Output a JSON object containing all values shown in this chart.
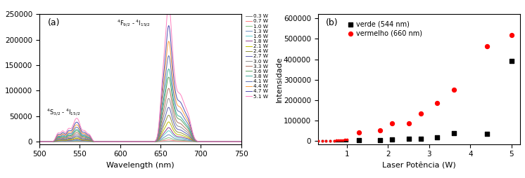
{
  "panel_a": {
    "xlabel": "Wavelength (nm)",
    "ylabel": "",
    "xlim": [
      500,
      750
    ],
    "ylim": [
      -5000,
      250000
    ],
    "yticks": [
      0,
      50000,
      100000,
      150000,
      200000,
      250000
    ],
    "label": "(a)",
    "annotation1": "$^4$S$_{3/2}$ - $^4$I$_{15/2}$",
    "annotation2": "$^4$F$_{9/2}$ - $^4$I$_{15/2}$",
    "powers": [
      0.3,
      0.7,
      1.0,
      1.3,
      1.6,
      1.8,
      2.1,
      2.4,
      2.7,
      3.0,
      3.3,
      3.6,
      3.8,
      4.1,
      4.4,
      4.7,
      5.1
    ],
    "colors": [
      "#808080",
      "#ff8080",
      "#80c080",
      "#7090c0",
      "#60d0d0",
      "#904090",
      "#c0c000",
      "#909040",
      "#6060b0",
      "#909090",
      "#b07060",
      "#60a060",
      "#40b0a0",
      "#6070b0",
      "#ffa040",
      "#5050b0",
      "#ff80c0"
    ]
  },
  "panel_b": {
    "xlabel": "Laser Potência (W)",
    "ylabel": "Intensidade",
    "xlim": [
      0.3,
      5.2
    ],
    "ylim": [
      -15000,
      620000
    ],
    "yticks": [
      0,
      100000,
      200000,
      300000,
      400000,
      500000,
      600000
    ],
    "label": "(b)",
    "legend_verde": "verde (544 nm)",
    "legend_vermelho": "vermelho (660 nm)",
    "x_all": [
      0.3,
      0.4,
      0.5,
      0.6,
      0.7,
      0.75,
      0.8,
      0.85,
      0.9,
      0.95,
      1.0
    ],
    "y_verde_dense": [
      200,
      300,
      400,
      600,
      800,
      900,
      1100,
      1300,
      1500,
      1700,
      2000
    ],
    "y_vermelho_dense": [
      500,
      800,
      1200,
      1800,
      2500,
      3200,
      4000,
      5000,
      6200,
      7500,
      9000
    ],
    "x_sparse": [
      1.3,
      1.8,
      2.1,
      2.5,
      2.8,
      3.2,
      3.6,
      4.4,
      5.0
    ],
    "y_verde_sparse": [
      3000,
      5000,
      7000,
      10000,
      13000,
      18000,
      40000,
      35000,
      393000
    ],
    "y_vermelho_sparse": [
      42000,
      52000,
      88000,
      88000,
      135000,
      185000,
      250000,
      465000,
      520000
    ]
  },
  "background_color": "#ffffff"
}
